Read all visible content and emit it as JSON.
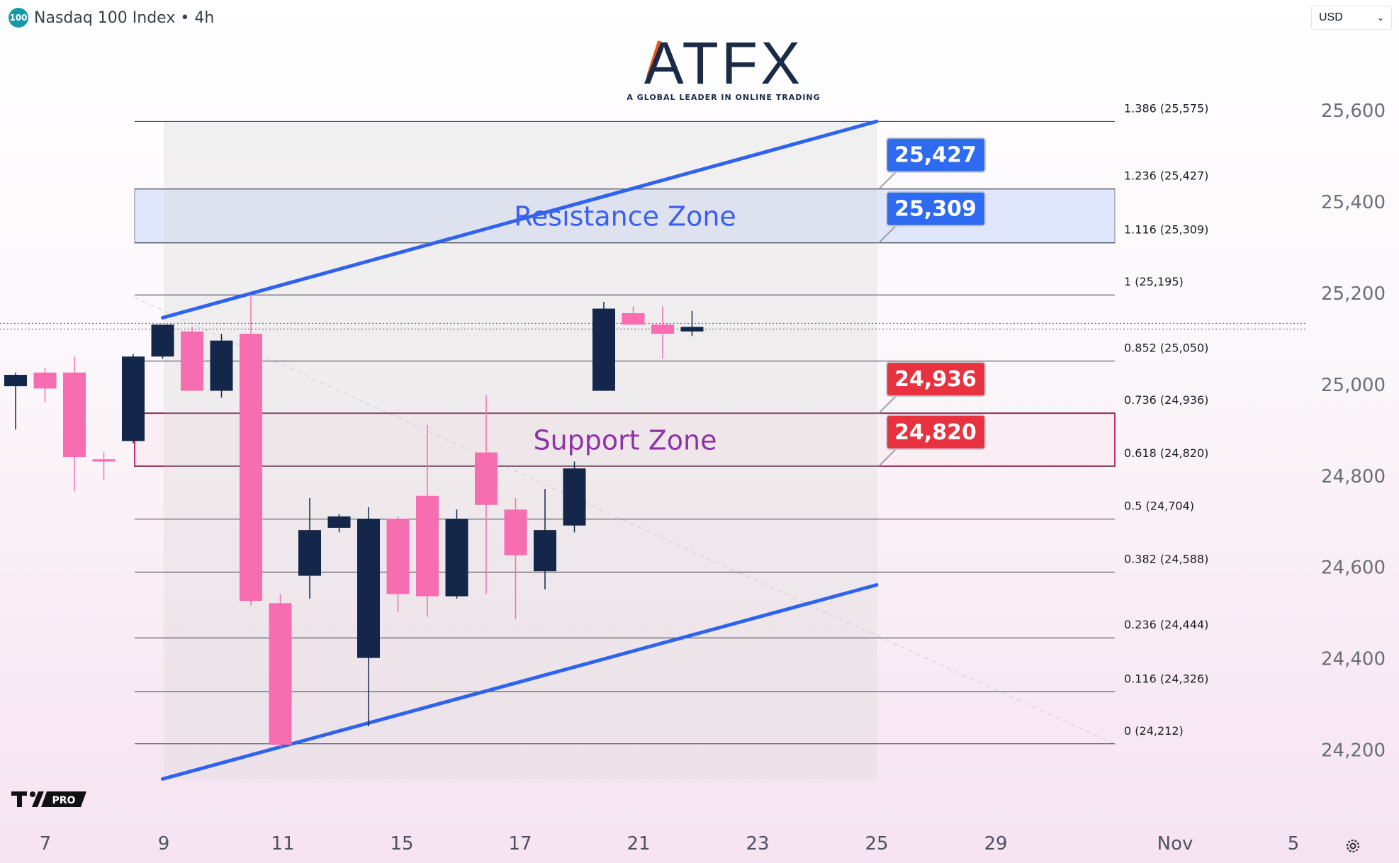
{
  "header": {
    "symbol_badge": "100",
    "title": "Nasdaq 100 Index • 4h"
  },
  "currency": {
    "value": "USD"
  },
  "brand": {
    "name": "ATFX",
    "tagline": "A GLOBAL LEADER IN ONLINE TRADING",
    "platform": "PRO"
  },
  "colors": {
    "bull": "#14264a",
    "bear": "#f76eb0",
    "channel": "#2f63ef",
    "resistance_label": "#2f6bf0",
    "support_label": "#e8323f"
  },
  "chart_data": {
    "type": "candlestick",
    "y_axis": {
      "ticks": [
        25600,
        25400,
        25200,
        25000,
        24800,
        24600,
        24400,
        24200
      ],
      "tick_labels": [
        "25,600",
        "25,400",
        "25,200",
        "25,000",
        "24,800",
        "24,600",
        "24,400",
        "24,200"
      ],
      "position": "right"
    },
    "x_axis": {
      "tick_labels": [
        "7",
        "9",
        "11",
        "15",
        "17",
        "21",
        "23",
        "25",
        "29",
        "Nov",
        "5"
      ]
    },
    "candles": [
      {
        "o": 24995,
        "h": 25025,
        "l": 24900,
        "c": 25020
      },
      {
        "o": 25025,
        "h": 25035,
        "l": 24960,
        "c": 24990
      },
      {
        "o": 25025,
        "h": 25060,
        "l": 24765,
        "c": 24840
      },
      {
        "o": 24835,
        "h": 24850,
        "l": 24790,
        "c": 24830
      },
      {
        "o": 24875,
        "h": 25065,
        "l": 24870,
        "c": 25060
      },
      {
        "o": 25060,
        "h": 25125,
        "l": 25055,
        "c": 25130
      },
      {
        "o": 25115,
        "h": 25125,
        "l": 24985,
        "c": 24985
      },
      {
        "o": 24985,
        "h": 25110,
        "l": 24970,
        "c": 25095
      },
      {
        "o": 25110,
        "h": 25195,
        "l": 24515,
        "c": 24525
      },
      {
        "o": 24520,
        "h": 24540,
        "l": 24205,
        "c": 24210
      },
      {
        "o": 24580,
        "h": 24750,
        "l": 24530,
        "c": 24680
      },
      {
        "o": 24685,
        "h": 24715,
        "l": 24675,
        "c": 24710
      },
      {
        "o": 24400,
        "h": 24730,
        "l": 24250,
        "c": 24705
      },
      {
        "o": 24705,
        "h": 24710,
        "l": 24500,
        "c": 24540
      },
      {
        "o": 24755,
        "h": 24910,
        "l": 24490,
        "c": 24535
      },
      {
        "o": 24535,
        "h": 24725,
        "l": 24530,
        "c": 24705
      },
      {
        "o": 24850,
        "h": 24975,
        "l": 24540,
        "c": 24735
      },
      {
        "o": 24725,
        "h": 24750,
        "l": 24485,
        "c": 24625
      },
      {
        "o": 24590,
        "h": 24770,
        "l": 24550,
        "c": 24680
      },
      {
        "o": 24690,
        "h": 24830,
        "l": 24675,
        "c": 24815
      },
      {
        "o": 24985,
        "h": 25180,
        "l": 24985,
        "c": 25165
      },
      {
        "o": 25155,
        "h": 25170,
        "l": 25130,
        "c": 25130
      },
      {
        "o": 25130,
        "h": 25170,
        "l": 25055,
        "c": 25110
      },
      {
        "o": 25115,
        "h": 25160,
        "l": 25105,
        "c": 25125
      }
    ],
    "fib_levels": [
      {
        "ratio": "1.386",
        "value": 25575,
        "label": "1.386 (25,575)"
      },
      {
        "ratio": "1.236",
        "value": 25427,
        "label": "1.236 (25,427)"
      },
      {
        "ratio": "1.116",
        "value": 25309,
        "label": "1.116 (25,309)"
      },
      {
        "ratio": "1",
        "value": 25195,
        "label": "1 (25,195)"
      },
      {
        "ratio": "0.852",
        "value": 25050,
        "label": "0.852 (25,050)"
      },
      {
        "ratio": "0.736",
        "value": 24936,
        "label": "0.736 (24,936)"
      },
      {
        "ratio": "0.618",
        "value": 24820,
        "label": "0.618 (24,820)"
      },
      {
        "ratio": "0.5",
        "value": 24704,
        "label": "0.5 (24,704)"
      },
      {
        "ratio": "0.382",
        "value": 24588,
        "label": "0.382 (24,588)"
      },
      {
        "ratio": "0.236",
        "value": 24444,
        "label": "0.236 (24,444)"
      },
      {
        "ratio": "0.116",
        "value": 24326,
        "label": "0.116 (24,326)"
      },
      {
        "ratio": "0",
        "value": 24212,
        "label": "0 (24,212)"
      }
    ],
    "zones": [
      {
        "name": "Resistance Zone",
        "from": 25309,
        "to": 25427
      },
      {
        "name": "Support Zone",
        "from": 24820,
        "to": 24936
      }
    ],
    "price_labels": [
      {
        "text": "25,427",
        "value": 25427,
        "kind": "resistance"
      },
      {
        "text": "25,309",
        "value": 25309,
        "kind": "resistance"
      },
      {
        "text": "24,936",
        "value": 24936,
        "kind": "support"
      },
      {
        "text": "24,820",
        "value": 24820,
        "kind": "support"
      }
    ],
    "channel": {
      "upper": {
        "from_candle": 5,
        "from_value": 25145,
        "to_date": "25",
        "to_value": 25575
      },
      "lower": {
        "from_candle": 5,
        "from_value": 24135,
        "to_date": "25",
        "to_value": 24560
      }
    },
    "current_price": 25125
  }
}
